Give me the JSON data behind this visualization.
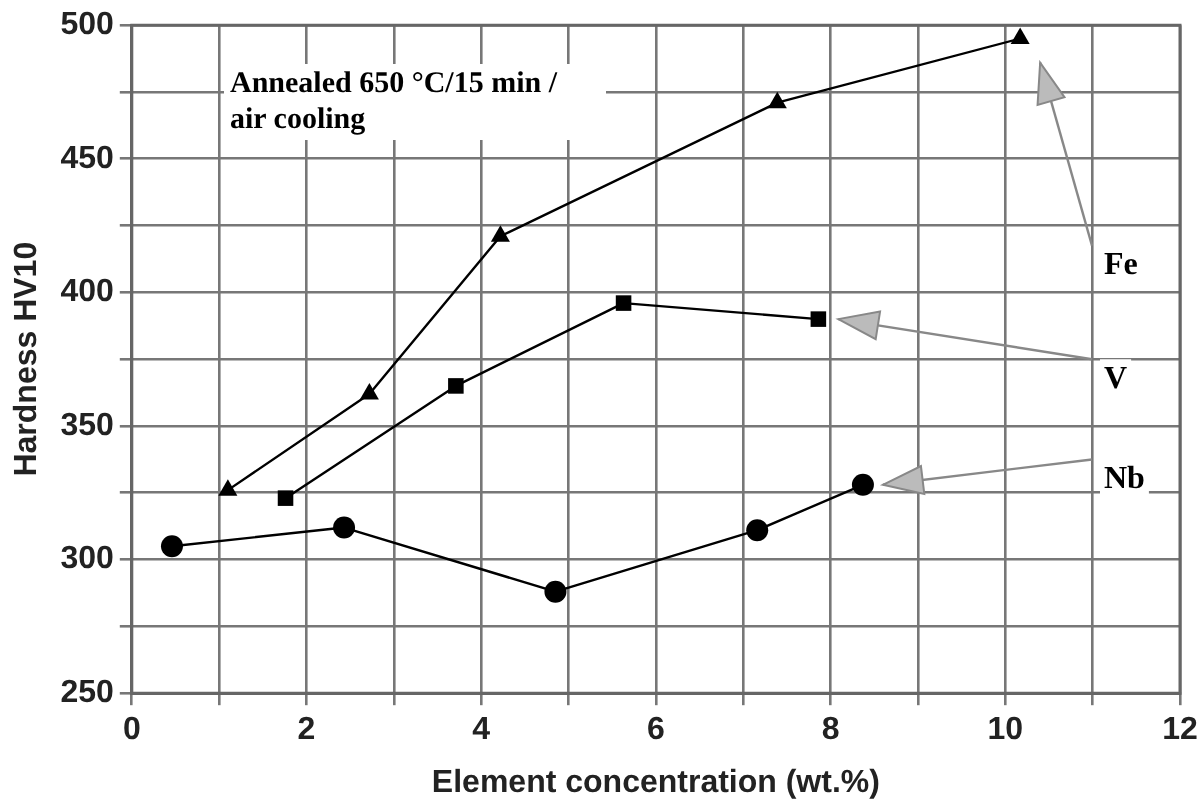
{
  "chart_data": {
    "type": "line",
    "xlabel": "Element concentration (wt.%)",
    "ylabel": "Hardness HV10",
    "annotations": [
      "Annealed 650 °C/15 min / air cooling"
    ],
    "xlim": [
      0,
      12
    ],
    "xticks": [
      0,
      {
        "value": 1,
        "label": null
      },
      2,
      {
        "value": 3,
        "label": null
      },
      4,
      {
        "value": 5,
        "label": null
      },
      6,
      {
        "value": 7,
        "label": null
      },
      8,
      {
        "value": 9,
        "label": null
      },
      10,
      {
        "value": 11,
        "label": null
      },
      12
    ],
    "ylim": [
      250,
      500
    ],
    "yticks": [
      250,
      {
        "value": 275,
        "label": null
      },
      300,
      {
        "value": 325,
        "label": null
      },
      350,
      {
        "value": 375,
        "label": null
      },
      400,
      {
        "value": 425,
        "label": null
      },
      450,
      {
        "value": 475,
        "label": null
      },
      500
    ],
    "grid": true,
    "legend": false,
    "line_style": "solid",
    "series": [
      {
        "name": "Fe",
        "color": "#000000",
        "marker": "triangle",
        "x": [
          1.1,
          2.72,
          4.22,
          7.39,
          10.17
        ],
        "values": [
          326,
          362,
          421,
          471,
          495
        ]
      },
      {
        "name": "V",
        "color": "#000000",
        "marker": "square",
        "x": [
          1.76,
          3.71,
          5.63,
          7.86
        ],
        "values": [
          323,
          365,
          396,
          390
        ]
      },
      {
        "name": "Nb",
        "color": "#000000",
        "marker": "circle",
        "x": [
          0.46,
          2.43,
          4.85,
          7.16,
          8.37
        ],
        "values": [
          305,
          312,
          288,
          311,
          328
        ]
      }
    ]
  }
}
